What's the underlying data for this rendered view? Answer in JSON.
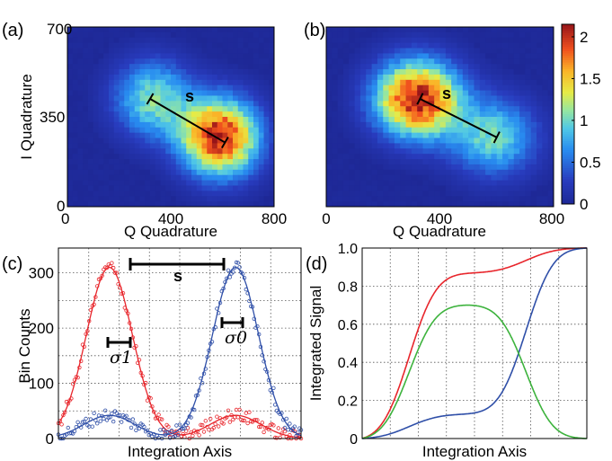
{
  "chart_data": [
    {
      "id": "a",
      "type": "heatmap",
      "panel_label": "(a)",
      "xlabel": "Q Quadrature",
      "ylabel": "I Quadrature",
      "xticks": [
        "0",
        "400",
        "800"
      ],
      "yticks": [
        "0",
        "350",
        "700"
      ],
      "xlim": [
        0,
        800
      ],
      "ylim": [
        0,
        700
      ],
      "annotation": "s",
      "blobs": [
        {
          "q": 590,
          "i": 270,
          "amplitude": 2.1
        },
        {
          "q": 330,
          "i": 420,
          "amplitude": 1.05
        }
      ],
      "separation_segment": {
        "from": [
          320,
          420
        ],
        "to": [
          610,
          250
        ]
      }
    },
    {
      "id": "b",
      "type": "heatmap",
      "panel_label": "(b)",
      "xlabel": "Q Quadrature",
      "xticks": [
        "0",
        "400",
        "800"
      ],
      "xlim": [
        0,
        800
      ],
      "ylim": [
        0,
        700
      ],
      "annotation": "s",
      "blobs": [
        {
          "q": 320,
          "i": 420,
          "amplitude": 2.1
        },
        {
          "q": 590,
          "i": 270,
          "amplitude": 1.0
        }
      ],
      "separation_segment": {
        "from": [
          330,
          420
        ],
        "to": [
          600,
          270
        ]
      },
      "colorbar": {
        "ticks": [
          "0",
          "0.5",
          "1",
          "1.5",
          "2"
        ],
        "range": [
          0,
          2.15
        ]
      }
    },
    {
      "id": "c",
      "type": "line",
      "panel_label": "(c)",
      "xlabel": "Integration Axis",
      "ylabel": "Bin Counts",
      "yticks": [
        "0",
        "100",
        "200",
        "300"
      ],
      "xlim": [
        0,
        10
      ],
      "ylim": [
        0,
        345
      ],
      "grid": true,
      "annotations": {
        "s": "s",
        "sigma1": "σ1",
        "sigma0": "σ0"
      },
      "series": [
        {
          "color": "#e8262c",
          "components": [
            {
              "center": 2.1,
              "amplitude": 310,
              "width": 0.95
            },
            {
              "center": 7.3,
              "amplitude": 42,
              "width": 1.05
            }
          ]
        },
        {
          "color": "#2f4fa8",
          "components": [
            {
              "center": 7.3,
              "amplitude": 310,
              "width": 0.95
            },
            {
              "center": 2.1,
              "amplitude": 42,
              "width": 1.05
            }
          ]
        }
      ]
    },
    {
      "id": "d",
      "type": "line",
      "panel_label": "(d)",
      "xlabel": "Integration Axis",
      "ylabel": "Integrated Signal",
      "yticks": [
        "0",
        "0.2",
        "0.4",
        "0.6",
        "0.8",
        "1.0"
      ],
      "xlim": [
        0,
        10
      ],
      "ylim": [
        0,
        1
      ],
      "grid": true,
      "series": [
        {
          "color": "#e8262c",
          "kind": "cdf"
        },
        {
          "color": "#2f4fa8",
          "kind": "cdf"
        },
        {
          "color": "#3db33d",
          "kind": "difference",
          "peak": 0.7
        }
      ]
    }
  ]
}
